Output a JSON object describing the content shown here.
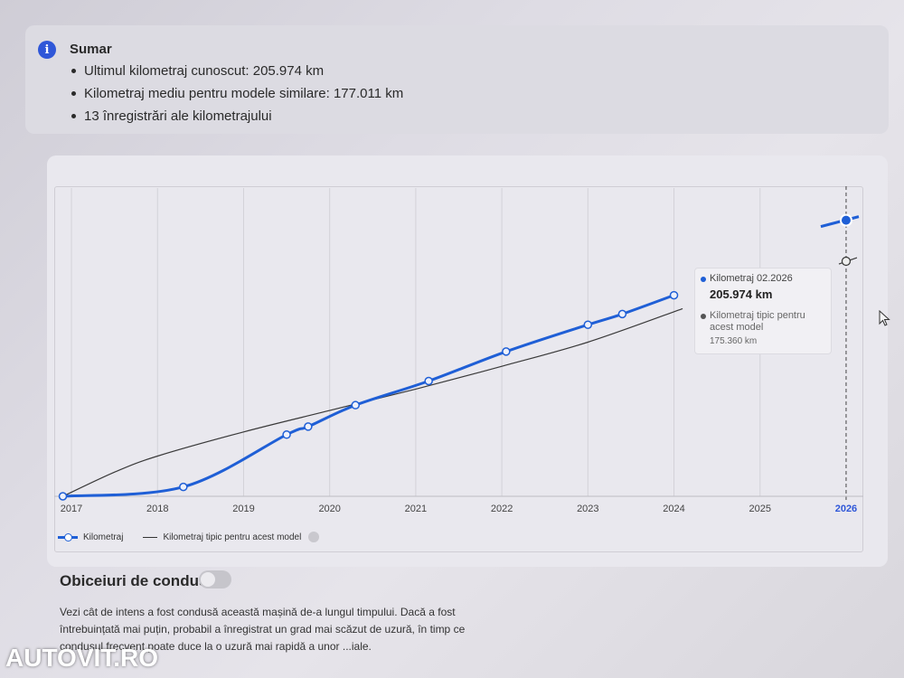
{
  "summary": {
    "title": "Sumar",
    "items": [
      "Ultimul kilometraj cunoscut: 205.974 km",
      "Kilometraj mediu pentru modele similare: 177.011 km",
      "13 înregistrări ale kilometrajului"
    ]
  },
  "chart_data": {
    "type": "line",
    "x_ticks": [
      "2017",
      "2018",
      "2019",
      "2020",
      "2021",
      "2022",
      "2023",
      "2024",
      "2025",
      "2026"
    ],
    "highlighted_tick": "2026",
    "xlim": [
      2016.8,
      2026.2
    ],
    "ylim": [
      0,
      230000
    ],
    "grid": "vertical",
    "legend_position": "bottom-left",
    "series": [
      {
        "name": "Kilometraj",
        "color": "#1f5fd6",
        "points": [
          [
            2016.9,
            0
          ],
          [
            2018.3,
            7000
          ],
          [
            2019.5,
            46000
          ],
          [
            2019.75,
            52000
          ],
          [
            2020.3,
            68000
          ],
          [
            2021.15,
            86000
          ],
          [
            2022.05,
            108000
          ],
          [
            2023.0,
            128000
          ],
          [
            2023.4,
            136000
          ],
          [
            2024.0,
            150000
          ],
          [
            2026.0,
            205974
          ]
        ]
      },
      {
        "name": "Kilometraj tipic pentru acest model",
        "color": "#333333",
        "points": [
          [
            2016.9,
            0
          ],
          [
            2017.5,
            18000
          ],
          [
            2018.0,
            30000
          ],
          [
            2019.0,
            48000
          ],
          [
            2020.0,
            64000
          ],
          [
            2021.0,
            80000
          ],
          [
            2022.0,
            97000
          ],
          [
            2023.0,
            115000
          ],
          [
            2024.1,
            140000
          ],
          [
            2026.0,
            175360
          ]
        ]
      }
    ],
    "tooltip": {
      "label": "Kilometraj 02.2026",
      "value": "205.974 km",
      "typical_label": "Kilometraj tipic pentru acest model",
      "typical_value": "175.360 km"
    }
  },
  "legend": {
    "km_label": "Kilometraj",
    "typical_label": "Kilometraj tipic pentru acest model"
  },
  "habits": {
    "title": "Obiceiuri de condus",
    "text": "Vezi cât de intens a fost condusă această mașină de-a lungul timpului. Dacă a fost întrebuințată mai puțin, probabil a înregistrat un grad mai scăzut de uzură, în timp ce condusul frecvent poate duce la o uzură mai rapidă a unor ...iale."
  },
  "watermark": "AUTOVIT.RO"
}
